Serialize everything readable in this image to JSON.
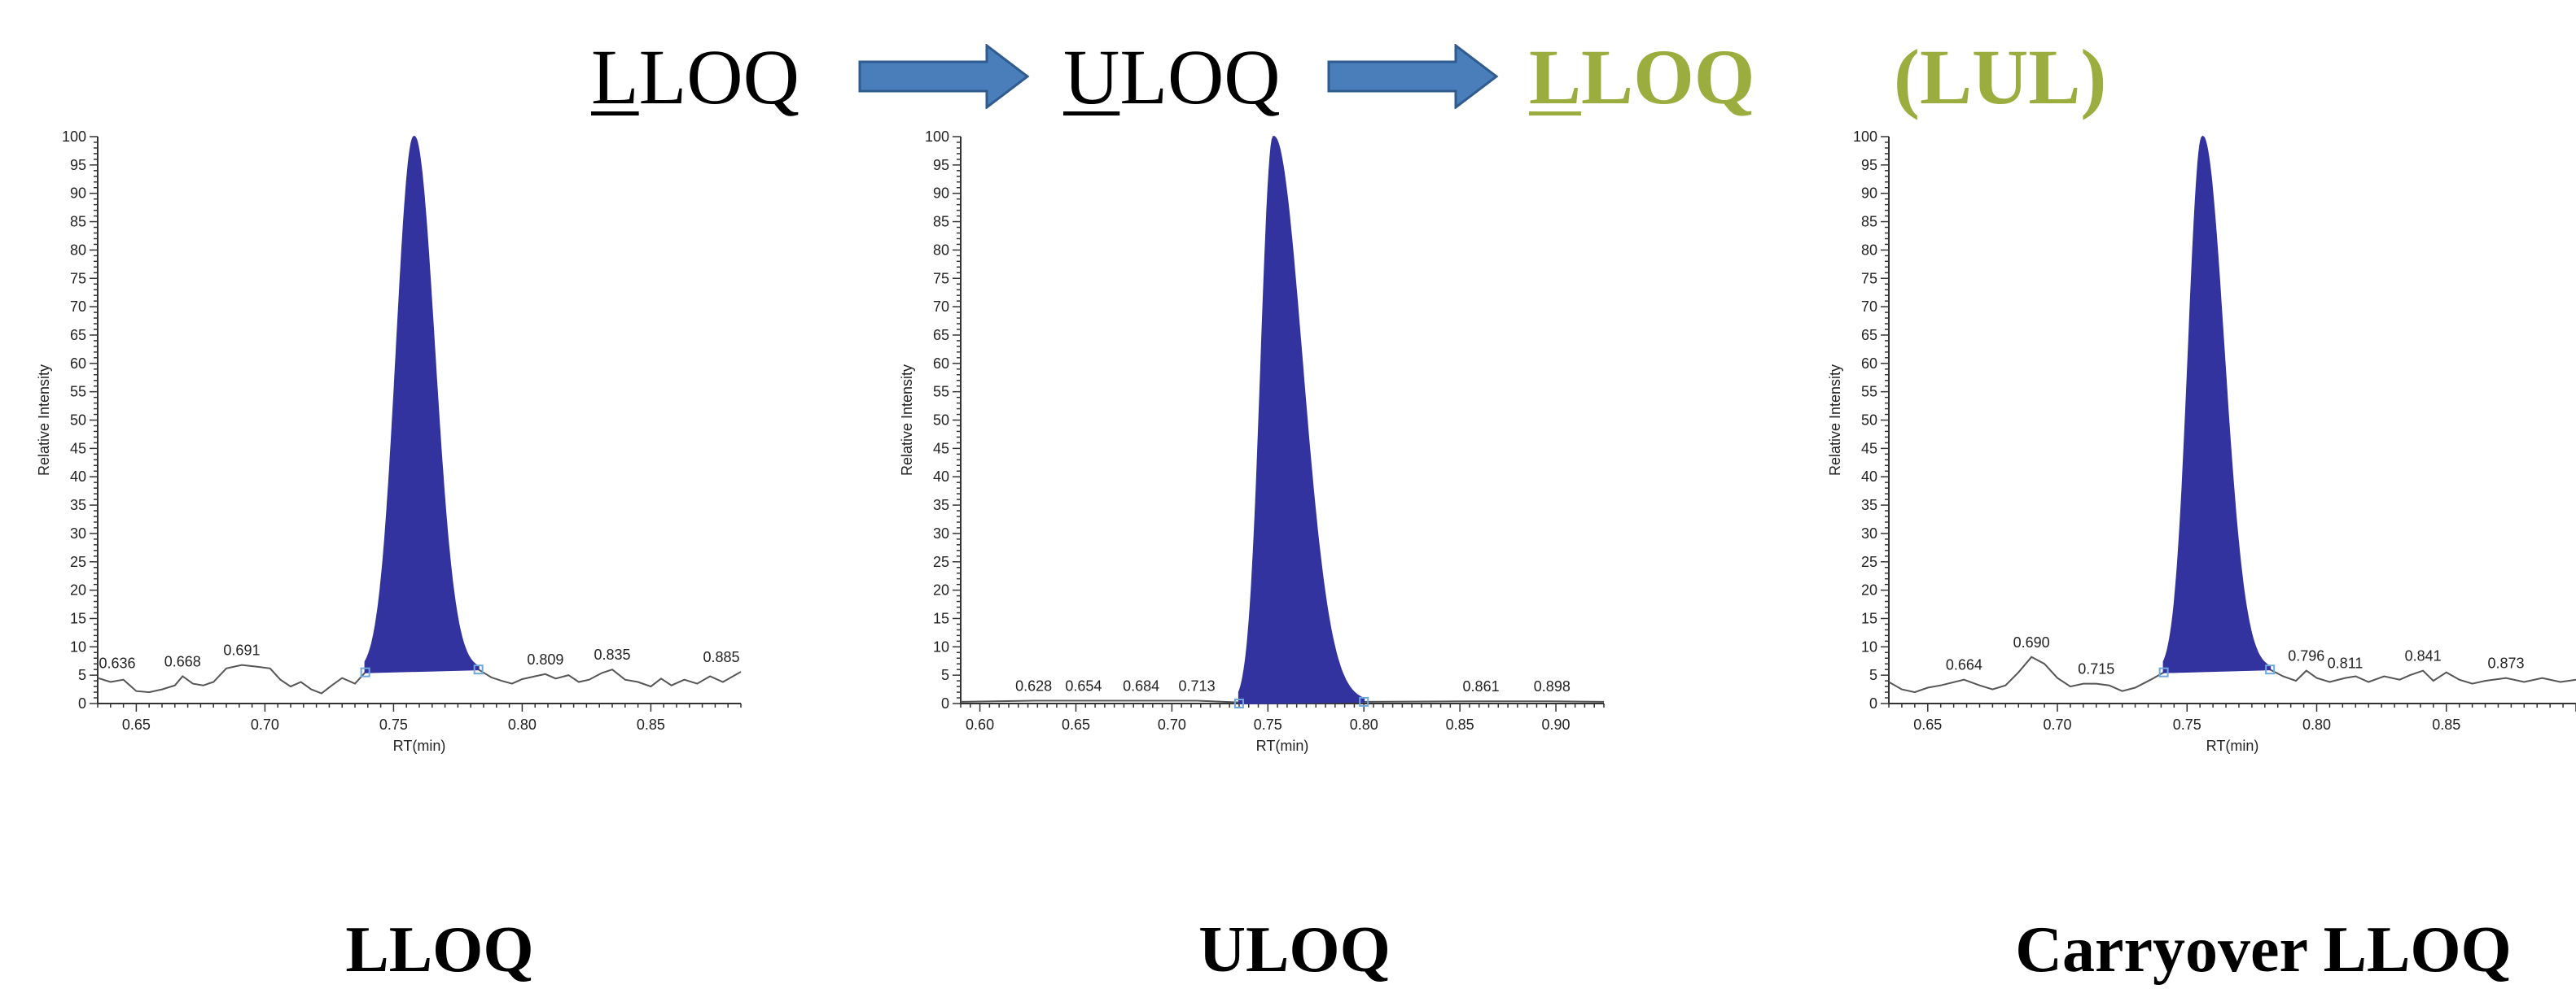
{
  "header": {
    "items": [
      {
        "first": "L",
        "rest": "LOQ"
      },
      {
        "first": "U",
        "rest": "LOQ"
      },
      {
        "first": "L",
        "rest": "LOQ"
      }
    ],
    "lul": "(LUL)",
    "accent_color": "#9aad3e",
    "arrow_color": "#4a7ebb"
  },
  "captions": [
    "LLOQ",
    "ULOQ",
    "Carryover LLOQ"
  ],
  "colors": {
    "peak_fill": "#3333a0",
    "trace": "#555555",
    "marker": "#6fa8dc"
  },
  "chart_data": [
    {
      "type": "line",
      "ylabel": "Relative Intensity",
      "xlabel": "RT(min)",
      "xlim": [
        0.635,
        0.885
      ],
      "ylim": [
        0,
        100
      ],
      "xticks": [
        0.65,
        0.7,
        0.75,
        0.8,
        0.85
      ],
      "yticks": [
        0,
        5,
        10,
        15,
        20,
        25,
        30,
        35,
        40,
        45,
        50,
        55,
        60,
        65,
        70,
        75,
        80,
        85,
        90,
        95,
        100
      ],
      "peak": {
        "start": 0.739,
        "apex": 0.758,
        "end": 0.783,
        "height": 100,
        "base_start": 5.5,
        "base_end": 6
      },
      "trace": [
        [
          0.635,
          4.5
        ],
        [
          0.64,
          3.8
        ],
        [
          0.645,
          4.2
        ],
        [
          0.65,
          2.2
        ],
        [
          0.655,
          2.0
        ],
        [
          0.66,
          2.5
        ],
        [
          0.665,
          3.2
        ],
        [
          0.668,
          4.8
        ],
        [
          0.672,
          3.5
        ],
        [
          0.676,
          3.2
        ],
        [
          0.68,
          3.8
        ],
        [
          0.685,
          6.2
        ],
        [
          0.691,
          6.8
        ],
        [
          0.697,
          6.5
        ],
        [
          0.702,
          6.2
        ],
        [
          0.706,
          4.2
        ],
        [
          0.71,
          3.0
        ],
        [
          0.714,
          3.8
        ],
        [
          0.718,
          2.5
        ],
        [
          0.722,
          1.8
        ],
        [
          0.726,
          3.2
        ],
        [
          0.73,
          4.5
        ],
        [
          0.735,
          3.5
        ],
        [
          0.739,
          5.5
        ],
        [
          0.783,
          6.0
        ],
        [
          0.788,
          4.6
        ],
        [
          0.792,
          4.0
        ],
        [
          0.796,
          3.5
        ],
        [
          0.8,
          4.3
        ],
        [
          0.805,
          4.8
        ],
        [
          0.809,
          5.2
        ],
        [
          0.813,
          4.4
        ],
        [
          0.818,
          5.0
        ],
        [
          0.822,
          3.8
        ],
        [
          0.826,
          4.2
        ],
        [
          0.831,
          5.4
        ],
        [
          0.835,
          6.0
        ],
        [
          0.84,
          4.2
        ],
        [
          0.845,
          3.8
        ],
        [
          0.85,
          3.0
        ],
        [
          0.854,
          4.4
        ],
        [
          0.858,
          3.2
        ],
        [
          0.863,
          4.2
        ],
        [
          0.868,
          3.5
        ],
        [
          0.873,
          4.8
        ],
        [
          0.878,
          3.8
        ],
        [
          0.885,
          5.6
        ]
      ],
      "labels": [
        {
          "x": 0.636,
          "y": 4.5,
          "text": "0.636"
        },
        {
          "x": 0.668,
          "y": 4.8,
          "text": "0.668"
        },
        {
          "x": 0.691,
          "y": 6.8,
          "text": "0.691"
        },
        {
          "x": 0.809,
          "y": 5.2,
          "text": "0.809"
        },
        {
          "x": 0.835,
          "y": 6.0,
          "text": "0.835"
        },
        {
          "x": 0.885,
          "y": 5.6,
          "text": "0.885"
        }
      ]
    },
    {
      "type": "line",
      "ylabel": "Relative Intensity",
      "xlabel": "RT(min)",
      "xlim": [
        0.59,
        0.925
      ],
      "ylim": [
        0,
        100
      ],
      "xticks": [
        0.6,
        0.65,
        0.7,
        0.75,
        0.8,
        0.85,
        0.9
      ],
      "yticks": [
        0,
        5,
        10,
        15,
        20,
        25,
        30,
        35,
        40,
        45,
        50,
        55,
        60,
        65,
        70,
        75,
        80,
        85,
        90,
        95,
        100
      ],
      "peak": {
        "start": 0.735,
        "apex": 0.753,
        "end": 0.8,
        "height": 100,
        "base_start": 0,
        "base_end": 0.3
      },
      "trace": [
        [
          0.59,
          0.3
        ],
        [
          0.628,
          0.5
        ],
        [
          0.654,
          0.5
        ],
        [
          0.684,
          0.5
        ],
        [
          0.713,
          0.5
        ],
        [
          0.735,
          0.2
        ],
        [
          0.8,
          0.3
        ],
        [
          0.861,
          0.4
        ],
        [
          0.898,
          0.4
        ],
        [
          0.925,
          0.3
        ]
      ],
      "labels": [
        {
          "x": 0.628,
          "y": 0.5,
          "text": "0.628"
        },
        {
          "x": 0.654,
          "y": 0.5,
          "text": "0.654"
        },
        {
          "x": 0.684,
          "y": 0.5,
          "text": "0.684"
        },
        {
          "x": 0.713,
          "y": 0.5,
          "text": "0.713"
        },
        {
          "x": 0.861,
          "y": 0.4,
          "text": "0.861"
        },
        {
          "x": 0.898,
          "y": 0.4,
          "text": "0.898"
        }
      ]
    },
    {
      "type": "line",
      "ylabel": "Relative Intensity",
      "xlabel": "RT(min)",
      "xlim": [
        0.635,
        0.9
      ],
      "ylim": [
        0,
        100
      ],
      "xticks": [
        0.65,
        0.7,
        0.75,
        0.8,
        0.85
      ],
      "yticks": [
        0,
        5,
        10,
        15,
        20,
        25,
        30,
        35,
        40,
        45,
        50,
        55,
        60,
        65,
        70,
        75,
        80,
        85,
        90,
        95,
        100
      ],
      "peak": {
        "start": 0.741,
        "apex": 0.756,
        "end": 0.782,
        "height": 100,
        "base_start": 5.5,
        "base_end": 6
      },
      "trace": [
        [
          0.635,
          3.8
        ],
        [
          0.64,
          2.5
        ],
        [
          0.645,
          2.0
        ],
        [
          0.65,
          2.8
        ],
        [
          0.655,
          3.2
        ],
        [
          0.664,
          4.2
        ],
        [
          0.67,
          3.2
        ],
        [
          0.675,
          2.5
        ],
        [
          0.68,
          3.2
        ],
        [
          0.685,
          5.5
        ],
        [
          0.69,
          8.2
        ],
        [
          0.695,
          7.0
        ],
        [
          0.7,
          4.5
        ],
        [
          0.705,
          3.0
        ],
        [
          0.71,
          3.5
        ],
        [
          0.715,
          3.5
        ],
        [
          0.72,
          3.2
        ],
        [
          0.725,
          2.2
        ],
        [
          0.73,
          2.8
        ],
        [
          0.736,
          4.2
        ],
        [
          0.741,
          5.5
        ],
        [
          0.782,
          6.0
        ],
        [
          0.787,
          4.8
        ],
        [
          0.792,
          4.0
        ],
        [
          0.796,
          5.8
        ],
        [
          0.8,
          4.5
        ],
        [
          0.805,
          3.8
        ],
        [
          0.811,
          4.5
        ],
        [
          0.815,
          4.8
        ],
        [
          0.82,
          3.8
        ],
        [
          0.826,
          4.8
        ],
        [
          0.832,
          4.2
        ],
        [
          0.836,
          5.0
        ],
        [
          0.841,
          5.8
        ],
        [
          0.845,
          4.0
        ],
        [
          0.85,
          5.5
        ],
        [
          0.855,
          4.2
        ],
        [
          0.86,
          3.5
        ],
        [
          0.865,
          4.0
        ],
        [
          0.873,
          4.5
        ],
        [
          0.88,
          3.8
        ],
        [
          0.887,
          4.5
        ],
        [
          0.894,
          3.8
        ],
        [
          0.9,
          4.2
        ]
      ],
      "labels": [
        {
          "x": 0.664,
          "y": 4.2,
          "text": "0.664"
        },
        {
          "x": 0.69,
          "y": 8.2,
          "text": "0.690"
        },
        {
          "x": 0.715,
          "y": 3.5,
          "text": "0.715"
        },
        {
          "x": 0.796,
          "y": 5.8,
          "text": "0.796"
        },
        {
          "x": 0.811,
          "y": 4.5,
          "text": "0.811"
        },
        {
          "x": 0.841,
          "y": 5.8,
          "text": "0.841"
        },
        {
          "x": 0.873,
          "y": 4.5,
          "text": "0.873"
        }
      ]
    }
  ]
}
